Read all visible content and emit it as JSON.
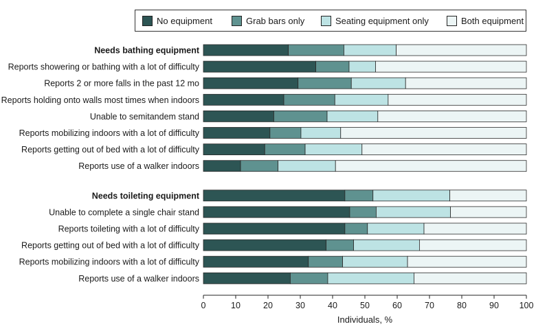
{
  "chart_data": {
    "type": "bar",
    "orientation": "horizontal",
    "stacked": true,
    "xlabel": "Individuals, %",
    "xlim": [
      0,
      100
    ],
    "xticks": [
      0,
      10,
      20,
      30,
      40,
      50,
      60,
      70,
      80,
      90,
      100
    ],
    "legend_position": "top",
    "series": [
      {
        "name": "No equipment",
        "color": "#2d5554"
      },
      {
        "name": "Grab bars only",
        "color": "#5f9290"
      },
      {
        "name": "Seating equipment only",
        "color": "#bde3e4"
      },
      {
        "name": "Both equipment",
        "color": "#ecf5f5"
      }
    ],
    "groups": [
      {
        "rows": [
          {
            "label": "Needs bathing equipment",
            "bold": true,
            "values": [
              26.3,
              17.2,
              16.2,
              40.3
            ]
          },
          {
            "label": "Reports showering or bathing with a lot of difficulty",
            "values": [
              34.8,
              10.3,
              8.2,
              46.7
            ]
          },
          {
            "label": "Reports 2 or more falls in the past 12 mo",
            "values": [
              29.3,
              16.5,
              16.8,
              37.4
            ]
          },
          {
            "label": "Reports holding onto walls most times when indoors",
            "values": [
              24.9,
              15.8,
              16.5,
              42.8
            ]
          },
          {
            "label": "Unable to semitandem stand",
            "values": [
              21.8,
              16.5,
              15.7,
              46.0
            ]
          },
          {
            "label": "Reports mobilizing indoors with a lot of difficulty",
            "values": [
              20.6,
              9.6,
              12.3,
              57.5
            ]
          },
          {
            "label": "Reports getting out of bed with a lot of difficulty",
            "values": [
              19.0,
              12.5,
              17.6,
              50.9
            ]
          },
          {
            "label": "Reports use of a walker indoors",
            "values": [
              11.5,
              11.6,
              17.8,
              59.1
            ]
          }
        ]
      },
      {
        "rows": [
          {
            "label": "Needs toileting equipment",
            "bold": true,
            "values": [
              43.8,
              8.7,
              23.8,
              23.7
            ]
          },
          {
            "label": "Unable to complete a single chair stand",
            "values": [
              45.3,
              8.2,
              23.0,
              23.5
            ]
          },
          {
            "label": "Reports toileting with a lot of difficulty",
            "values": [
              43.8,
              7.0,
              17.5,
              31.7
            ]
          },
          {
            "label": "Reports getting out of bed with a lot of difficulty",
            "values": [
              38.0,
              8.5,
              20.4,
              33.1
            ]
          },
          {
            "label": "Reports mobilizing indoors with a lot of difficulty",
            "values": [
              32.5,
              10.6,
              20.1,
              36.8
            ]
          },
          {
            "label": "Reports use of a walker indoors",
            "values": [
              26.9,
              11.6,
              26.7,
              34.8
            ]
          }
        ]
      }
    ]
  }
}
